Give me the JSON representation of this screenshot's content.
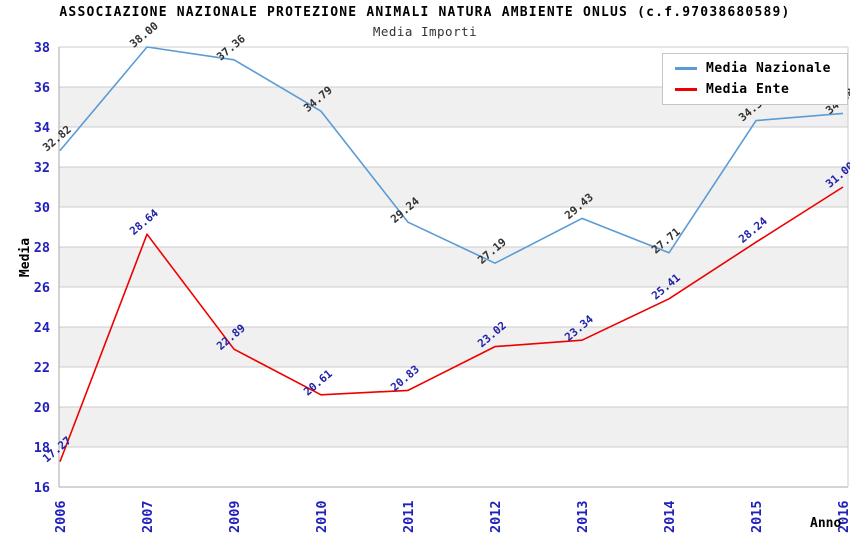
{
  "header": {
    "title": "ASSOCIAZIONE NAZIONALE PROTEZIONE ANIMALI NATURA AMBIENTE ONLUS (c.f.97038680589)",
    "subtitle": "Media Importi"
  },
  "axes": {
    "y_label": "Media",
    "x_label": "Anno",
    "y_tick_color": "#2222bb",
    "x_tick_color": "#2222bb"
  },
  "legend": {
    "items": [
      {
        "label": "Media Nazionale",
        "color": "#5b9bd5"
      },
      {
        "label": "Media Ente",
        "color": "#ee0000"
      }
    ]
  },
  "chart_data": {
    "type": "line",
    "title": "ASSOCIAZIONE NAZIONALE PROTEZIONE ANIMALI NATURA AMBIENTE ONLUS (c.f.97038680589)",
    "subtitle": "Media Importi",
    "xlabel": "Anno",
    "ylabel": "Media",
    "x": [
      "2006",
      "2007",
      "2009",
      "2010",
      "2011",
      "2012",
      "2013",
      "2014",
      "2015",
      "2016"
    ],
    "series": [
      {
        "name": "Media Nazionale",
        "color": "#5b9bd5",
        "label_color": "#333333",
        "values": [
          32.82,
          38.0,
          37.36,
          34.79,
          29.24,
          27.19,
          29.43,
          27.71,
          34.32,
          34.68
        ]
      },
      {
        "name": "Media Ente",
        "color": "#ee0000",
        "label_color": "#2222aa",
        "values": [
          17.27,
          28.64,
          22.89,
          20.61,
          20.83,
          23.02,
          23.34,
          25.41,
          28.24,
          31.0
        ]
      }
    ],
    "ylim": [
      16,
      38
    ],
    "y_step": 2,
    "y_ticks": [
      38,
      36,
      34,
      32,
      30,
      28,
      26,
      24,
      22,
      20,
      18,
      16
    ],
    "grid": true,
    "band_fill": "#f0f0f0",
    "grid_color": "#cccccc",
    "axis_color": "#aaaaaa",
    "legend_position": "top-right",
    "data_label_rotation": -40
  }
}
